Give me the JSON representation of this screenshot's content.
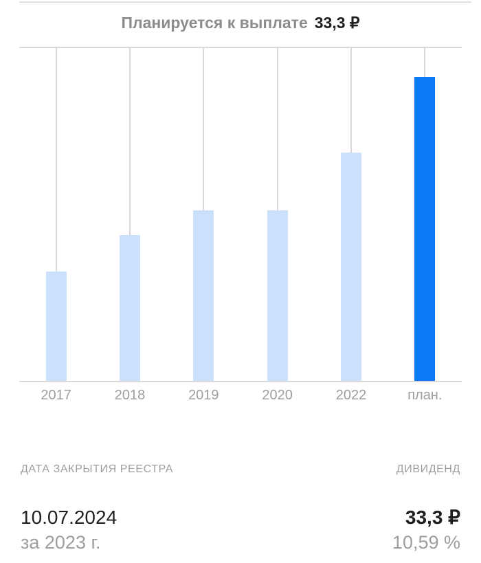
{
  "title": {
    "label": "Планируется к выплате",
    "value": "33,3 ₽"
  },
  "chart_data": {
    "type": "bar",
    "title": "Планируется к выплате 33,3 ₽",
    "categories": [
      "2017",
      "2018",
      "2019",
      "2020",
      "2022",
      "план."
    ],
    "values": [
      12,
      16,
      18.7,
      18.7,
      25,
      33.3
    ],
    "unit": "₽",
    "highlight_index": 5,
    "highlight_label": "план.",
    "xlabel": "",
    "ylabel": "",
    "ylim": [
      0,
      36.5
    ],
    "grid": "vertical-droplines",
    "legend": "none",
    "bar_color": "#cbe0fa",
    "highlight_color": "#0a7af5",
    "gridline_color": "#d9d9d9"
  },
  "details": {
    "header_left": "ДАТА ЗАКРЫТИЯ РЕЕСТРА",
    "header_right": "ДИВИДЕНД",
    "record_date": "10.07.2024",
    "dividend_amount": "33,3 ₽",
    "period": "за 2023 г.",
    "dividend_yield": "10,59 %"
  },
  "colors": {
    "title_muted": "#8c8c8c",
    "text_dark": "#1f1f1f",
    "text_muted": "#9e9e9e",
    "divider": "#e2e2e2",
    "gridline": "#d9d9d9",
    "bar": "#cbe0fa",
    "bar_highlight": "#0a7af5",
    "background": "#ffffff"
  }
}
